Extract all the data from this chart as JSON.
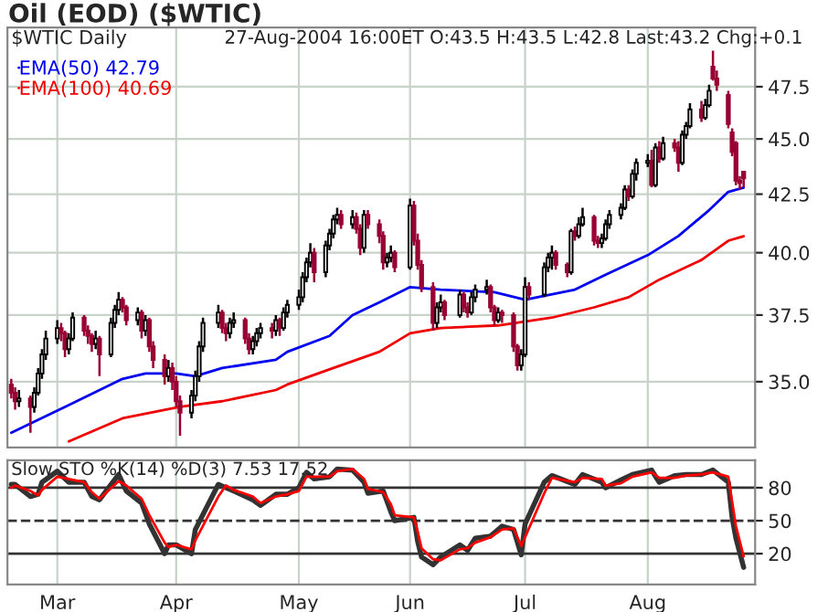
{
  "chart_data": [
    {
      "type": "candlestick",
      "title": "Oil (EOD) ($WTIC)",
      "annotations": [
        "$WTIC Daily",
        "27-Aug-2004 16:00ET O:43.5 H:43.5 L:42.8 Last:43.2 Chg:+0.1"
      ],
      "x": [
        "2004-02-18",
        "2004-02-19",
        "2004-02-20",
        "2004-02-23",
        "2004-02-24",
        "2004-02-25",
        "2004-02-26",
        "2004-02-27",
        "2004-03-01",
        "2004-03-02",
        "2004-03-03",
        "2004-03-04",
        "2004-03-05",
        "2004-03-08",
        "2004-03-09",
        "2004-03-10",
        "2004-03-11",
        "2004-03-12",
        "2004-03-15",
        "2004-03-16",
        "2004-03-17",
        "2004-03-18",
        "2004-03-19",
        "2004-03-22",
        "2004-03-23",
        "2004-03-24",
        "2004-03-25",
        "2004-03-26",
        "2004-03-29",
        "2004-03-30",
        "2004-03-31",
        "2004-04-01",
        "2004-04-02",
        "2004-04-05",
        "2004-04-06",
        "2004-04-07",
        "2004-04-08",
        "2004-04-12",
        "2004-04-13",
        "2004-04-14",
        "2004-04-15",
        "2004-04-16",
        "2004-04-19",
        "2004-04-20",
        "2004-04-21",
        "2004-04-22",
        "2004-04-23",
        "2004-04-26",
        "2004-04-27",
        "2004-04-28",
        "2004-04-29",
        "2004-04-30",
        "2004-05-03",
        "2004-05-04",
        "2004-05-05",
        "2004-05-06",
        "2004-05-07",
        "2004-05-10",
        "2004-05-11",
        "2004-05-12",
        "2004-05-13",
        "2004-05-14",
        "2004-05-17",
        "2004-05-18",
        "2004-05-19",
        "2004-05-20",
        "2004-05-21",
        "2004-05-24",
        "2004-05-25",
        "2004-05-26",
        "2004-05-27",
        "2004-05-28",
        "2004-06-01",
        "2004-06-02",
        "2004-06-03",
        "2004-06-04",
        "2004-06-07",
        "2004-06-08",
        "2004-06-09",
        "2004-06-10",
        "2004-06-14",
        "2004-06-15",
        "2004-06-16",
        "2004-06-17",
        "2004-06-18",
        "2004-06-21",
        "2004-06-22",
        "2004-06-23",
        "2004-06-24",
        "2004-06-25",
        "2004-06-28",
        "2004-06-29",
        "2004-06-30",
        "2004-07-01",
        "2004-07-02",
        "2004-07-06",
        "2004-07-07",
        "2004-07-08",
        "2004-07-09",
        "2004-07-12",
        "2004-07-13",
        "2004-07-14",
        "2004-07-15",
        "2004-07-16",
        "2004-07-19",
        "2004-07-20",
        "2004-07-21",
        "2004-07-22",
        "2004-07-23",
        "2004-07-26",
        "2004-07-27",
        "2004-07-28",
        "2004-07-29",
        "2004-07-30",
        "2004-08-02",
        "2004-08-03",
        "2004-08-04",
        "2004-08-05",
        "2004-08-06",
        "2004-08-09",
        "2004-08-10",
        "2004-08-11",
        "2004-08-12",
        "2004-08-13",
        "2004-08-16",
        "2004-08-17",
        "2004-08-18",
        "2004-08-19",
        "2004-08-20",
        "2004-08-23",
        "2004-08-24",
        "2004-08-25",
        "2004-08-26",
        "2004-08-27"
      ],
      "ohlc": [
        [
          34.9,
          35.1,
          34.4,
          34.6
        ],
        [
          34.6,
          34.8,
          34.0,
          34.3
        ],
        [
          34.3,
          34.7,
          34.1,
          34.4
        ],
        [
          34.4,
          34.5,
          33.2,
          34.1
        ],
        [
          34.1,
          34.8,
          33.9,
          34.6
        ],
        [
          34.6,
          35.5,
          34.5,
          35.3
        ],
        [
          35.3,
          36.2,
          35.1,
          36.0
        ],
        [
          36.0,
          36.9,
          35.8,
          36.6
        ],
        [
          36.6,
          37.3,
          36.4,
          37.0
        ],
        [
          37.0,
          37.2,
          36.5,
          36.8
        ],
        [
          36.8,
          36.9,
          35.9,
          36.2
        ],
        [
          36.2,
          36.8,
          36.0,
          36.6
        ],
        [
          36.6,
          37.6,
          36.5,
          37.4
        ],
        [
          37.4,
          37.5,
          36.7,
          36.9
        ],
        [
          36.9,
          37.1,
          36.4,
          36.7
        ],
        [
          36.7,
          36.8,
          36.1,
          36.4
        ],
        [
          36.4,
          36.9,
          36.2,
          36.6
        ],
        [
          36.6,
          36.7,
          35.2,
          36.0
        ],
        [
          36.0,
          37.4,
          35.9,
          37.2
        ],
        [
          37.2,
          37.9,
          37.0,
          37.7
        ],
        [
          37.7,
          38.4,
          37.5,
          38.1
        ],
        [
          38.1,
          38.2,
          37.6,
          37.8
        ],
        [
          37.8,
          37.9,
          37.1,
          37.3
        ],
        [
          37.3,
          37.8,
          37.1,
          37.6
        ],
        [
          37.6,
          37.7,
          36.6,
          36.9
        ],
        [
          36.9,
          37.5,
          36.7,
          37.3
        ],
        [
          37.3,
          37.4,
          36.1,
          36.3
        ],
        [
          36.3,
          36.5,
          35.5,
          35.8
        ],
        [
          35.8,
          36.0,
          34.9,
          35.2
        ],
        [
          35.2,
          35.8,
          35.0,
          35.5
        ],
        [
          35.5,
          35.7,
          34.7,
          35.0
        ],
        [
          35.0,
          35.2,
          34.1,
          34.3
        ],
        [
          34.3,
          34.5,
          33.1,
          33.9
        ],
        [
          33.9,
          34.7,
          33.7,
          34.5
        ],
        [
          34.5,
          35.4,
          34.3,
          35.2
        ],
        [
          35.2,
          36.5,
          35.0,
          36.3
        ],
        [
          36.3,
          37.4,
          36.1,
          37.2
        ],
        [
          37.2,
          37.9,
          37.0,
          37.6
        ],
        [
          37.6,
          37.7,
          36.8,
          37.0
        ],
        [
          37.0,
          37.2,
          36.5,
          36.8
        ],
        [
          36.8,
          37.4,
          36.6,
          37.2
        ],
        [
          37.2,
          37.6,
          37.0,
          37.3
        ],
        [
          37.3,
          37.4,
          36.4,
          36.6
        ],
        [
          36.6,
          36.8,
          36.0,
          36.2
        ],
        [
          36.2,
          36.7,
          36.0,
          36.5
        ],
        [
          36.5,
          37.0,
          36.3,
          36.8
        ],
        [
          36.8,
          37.2,
          36.6,
          37.0
        ],
        [
          37.0,
          37.2,
          36.6,
          36.9
        ],
        [
          36.9,
          37.5,
          36.7,
          37.3
        ],
        [
          37.3,
          37.4,
          36.7,
          37.0
        ],
        [
          37.0,
          37.8,
          36.9,
          37.6
        ],
        [
          37.6,
          38.1,
          37.4,
          37.9
        ],
        [
          37.9,
          38.5,
          37.7,
          38.2
        ],
        [
          38.2,
          39.2,
          38.0,
          39.0
        ],
        [
          39.0,
          39.8,
          38.8,
          39.6
        ],
        [
          39.6,
          40.4,
          39.4,
          40.0
        ],
        [
          40.0,
          40.2,
          38.8,
          39.2
        ],
        [
          39.2,
          40.5,
          39.0,
          40.3
        ],
        [
          40.3,
          41.0,
          40.1,
          40.8
        ],
        [
          40.8,
          41.6,
          40.6,
          41.4
        ],
        [
          41.4,
          41.9,
          41.2,
          41.6
        ],
        [
          41.6,
          41.8,
          41.0,
          41.2
        ],
        [
          41.2,
          41.8,
          41.0,
          41.5
        ],
        [
          41.5,
          41.7,
          40.8,
          41.0
        ],
        [
          41.0,
          41.2,
          39.9,
          40.2
        ],
        [
          40.2,
          41.8,
          40.0,
          41.6
        ],
        [
          41.6,
          41.8,
          41.0,
          41.2
        ],
        [
          41.2,
          41.4,
          40.4,
          40.7
        ],
        [
          40.7,
          40.9,
          39.3,
          39.6
        ],
        [
          39.6,
          40.0,
          39.4,
          39.8
        ],
        [
          39.8,
          40.3,
          39.6,
          40.0
        ],
        [
          40.0,
          40.1,
          39.2,
          39.4
        ],
        [
          39.4,
          42.3,
          39.3,
          42.0
        ],
        [
          42.0,
          42.2,
          40.3,
          40.5
        ],
        [
          40.5,
          40.8,
          39.3,
          39.5
        ],
        [
          39.5,
          39.7,
          38.4,
          38.6
        ],
        [
          38.6,
          38.8,
          36.9,
          37.2
        ],
        [
          37.2,
          38.0,
          37.0,
          37.8
        ],
        [
          37.8,
          38.3,
          37.6,
          38.0
        ],
        [
          38.0,
          38.1,
          37.3,
          37.5
        ],
        [
          37.5,
          38.5,
          37.4,
          38.3
        ],
        [
          38.3,
          38.4,
          37.6,
          37.8
        ],
        [
          37.8,
          38.0,
          37.4,
          37.6
        ],
        [
          37.6,
          38.4,
          37.5,
          38.2
        ],
        [
          38.2,
          38.7,
          38.0,
          38.5
        ],
        [
          38.5,
          38.9,
          38.3,
          38.6
        ],
        [
          38.6,
          38.7,
          37.6,
          37.8
        ],
        [
          37.8,
          37.9,
          37.1,
          37.3
        ],
        [
          37.3,
          37.8,
          37.2,
          37.6
        ],
        [
          37.6,
          37.7,
          37.2,
          37.5
        ],
        [
          37.5,
          37.6,
          36.1,
          36.3
        ],
        [
          36.3,
          36.4,
          35.4,
          35.6
        ],
        [
          35.6,
          36.2,
          35.4,
          36.0
        ],
        [
          36.0,
          39.0,
          35.9,
          38.6
        ],
        [
          38.6,
          38.8,
          38.1,
          38.3
        ],
        [
          38.3,
          39.6,
          38.2,
          39.4
        ],
        [
          39.4,
          40.0,
          39.2,
          39.8
        ],
        [
          39.8,
          40.3,
          39.3,
          40.0
        ],
        [
          40.0,
          40.1,
          39.3,
          39.5
        ],
        [
          39.5,
          39.6,
          39.0,
          39.2
        ],
        [
          39.2,
          41.0,
          39.1,
          40.9
        ],
        [
          40.9,
          41.1,
          40.5,
          40.7
        ],
        [
          40.7,
          41.5,
          40.6,
          41.2
        ],
        [
          41.2,
          41.9,
          41.1,
          41.5
        ],
        [
          41.5,
          41.6,
          40.3,
          40.5
        ],
        [
          40.5,
          40.7,
          40.2,
          40.4
        ],
        [
          40.4,
          40.8,
          40.2,
          40.6
        ],
        [
          40.6,
          41.4,
          40.5,
          41.2
        ],
        [
          41.2,
          41.8,
          41.0,
          41.6
        ],
        [
          41.6,
          42.1,
          41.4,
          41.9
        ],
        [
          41.9,
          42.9,
          41.8,
          42.7
        ],
        [
          42.7,
          42.9,
          42.2,
          42.4
        ],
        [
          42.4,
          43.6,
          42.3,
          43.4
        ],
        [
          43.4,
          44.1,
          43.1,
          43.9
        ],
        [
          43.9,
          44.3,
          43.7,
          44.0
        ],
        [
          44.0,
          44.5,
          42.8,
          42.9
        ],
        [
          42.9,
          44.8,
          42.8,
          44.6
        ],
        [
          44.6,
          44.9,
          43.9,
          44.1
        ],
        [
          44.1,
          45.1,
          44.0,
          44.8
        ],
        [
          44.8,
          45.0,
          44.4,
          44.6
        ],
        [
          44.6,
          44.9,
          43.5,
          43.9
        ],
        [
          43.9,
          45.4,
          43.8,
          45.2
        ],
        [
          45.2,
          45.8,
          45.0,
          45.6
        ],
        [
          45.6,
          46.7,
          45.5,
          46.4
        ],
        [
          46.4,
          46.8,
          45.8,
          46.0
        ],
        [
          46.0,
          46.9,
          45.9,
          46.6
        ],
        [
          46.6,
          47.6,
          46.5,
          47.3
        ],
        [
          48.5,
          49.3,
          47.8,
          47.9
        ],
        [
          47.9,
          48.3,
          47.3,
          47.6
        ],
        [
          47.1,
          47.3,
          45.5,
          45.7
        ],
        [
          45.3,
          45.5,
          44.2,
          44.4
        ],
        [
          44.8,
          44.9,
          42.9,
          43.1
        ],
        [
          43.1,
          43.3,
          42.7,
          43.0
        ],
        [
          43.5,
          43.5,
          42.8,
          43.2
        ]
      ],
      "series": [
        {
          "name": "EMA(50) 42.79",
          "type": "line",
          "color": "#0000ee",
          "x": [
            "2004-02-18",
            "2004-03-03",
            "2004-03-18",
            "2004-03-24",
            "2004-04-01",
            "2004-04-06",
            "2004-04-13",
            "2004-04-27",
            "2004-04-30",
            "2004-05-11",
            "2004-05-17",
            "2004-05-24",
            "2004-06-01",
            "2004-06-09",
            "2004-06-23",
            "2004-07-01",
            "2004-07-14",
            "2004-07-22",
            "2004-08-02",
            "2004-08-10",
            "2004-08-18",
            "2004-08-23",
            "2004-08-27"
          ],
          "values": [
            33.2,
            34.1,
            35.1,
            35.3,
            35.3,
            35.2,
            35.5,
            35.8,
            36.1,
            36.7,
            37.5,
            38.0,
            38.6,
            38.5,
            38.4,
            38.1,
            38.5,
            39.1,
            39.9,
            40.7,
            41.8,
            42.6,
            42.79
          ]
        },
        {
          "name": "EMA(100) 40.69",
          "type": "line",
          "color": "#ee0000",
          "x": [
            "2004-03-04",
            "2004-03-18",
            "2004-04-02",
            "2004-04-13",
            "2004-04-27",
            "2004-04-30",
            "2004-05-12",
            "2004-05-24",
            "2004-06-01",
            "2004-06-09",
            "2004-06-24",
            "2004-07-08",
            "2004-07-19",
            "2004-07-28",
            "2004-08-05",
            "2004-08-16",
            "2004-08-23",
            "2004-08-27"
          ],
          "values": [
            32.9,
            33.7,
            34.1,
            34.3,
            34.7,
            34.9,
            35.5,
            36.1,
            36.8,
            37.0,
            37.1,
            37.4,
            37.8,
            38.2,
            38.9,
            39.7,
            40.5,
            40.69
          ]
        }
      ],
      "log": true,
      "ylim": [
        32.7,
        50.5
      ],
      "yticks": [
        {
          "value": 35,
          "label": "35.0"
        },
        {
          "value": 37.5,
          "label": "37.5"
        },
        {
          "value": 40,
          "label": "40.0"
        },
        {
          "value": 42.5,
          "label": "42.5"
        },
        {
          "value": 45,
          "label": "45.0"
        },
        {
          "value": 47.5,
          "label": "47.5"
        }
      ],
      "xlim": [
        "2004-02-17",
        "2004-08-30"
      ],
      "xticks": [
        {
          "value": "2004-03-01",
          "label": null
        },
        {
          "value": "2004-04-01",
          "label": null
        },
        {
          "value": "2004-05-03",
          "label": null
        },
        {
          "value": "2004-06-01",
          "label": null
        },
        {
          "value": "2004-07-01",
          "label": null
        },
        {
          "value": "2004-08-02",
          "label": null
        }
      ],
      "tick_labels": "y",
      "grid": true,
      "legend": "top left"
    },
    {
      "type": "line",
      "title": "Slow STO %K(14) %D(3) 7.53 17.52",
      "series": [
        {
          "color": "#333333",
          "x": [
            "2004-02-18",
            "2004-02-19",
            "2004-02-23",
            "2004-02-25",
            "2004-02-26",
            "2004-03-01",
            "2004-03-04",
            "2004-03-08",
            "2004-03-10",
            "2004-03-12",
            "2004-03-17",
            "2004-03-19",
            "2004-03-23",
            "2004-03-25",
            "2004-03-29",
            "2004-03-30",
            "2004-04-01",
            "2004-04-05",
            "2004-04-06",
            "2004-04-12",
            "2004-04-14",
            "2004-04-16",
            "2004-04-21",
            "2004-04-23",
            "2004-04-27",
            "2004-04-30",
            "2004-05-03",
            "2004-05-05",
            "2004-05-07",
            "2004-05-11",
            "2004-05-13",
            "2004-05-17",
            "2004-05-20",
            "2004-05-21",
            "2004-05-25",
            "2004-05-27",
            "2004-05-28",
            "2004-06-02",
            "2004-06-03",
            "2004-06-04",
            "2004-06-07",
            "2004-06-09",
            "2004-06-14",
            "2004-06-16",
            "2004-06-18",
            "2004-06-22",
            "2004-06-25",
            "2004-06-28",
            "2004-06-30",
            "2004-07-01",
            "2004-07-06",
            "2004-07-08",
            "2004-07-14",
            "2004-07-16",
            "2004-07-21",
            "2004-07-22",
            "2004-07-26",
            "2004-07-29",
            "2004-08-03",
            "2004-08-05",
            "2004-08-09",
            "2004-08-12",
            "2004-08-16",
            "2004-08-19",
            "2004-08-23",
            "2004-08-24",
            "2004-08-25",
            "2004-08-27"
          ],
          "values": [
            83,
            83,
            72,
            74,
            85,
            95,
            85,
            85,
            72,
            69,
            92,
            77,
            66,
            47,
            20,
            28,
            28,
            20,
            42,
            83,
            80,
            77,
            69,
            64,
            74,
            74,
            80,
            94,
            88,
            90,
            97,
            96,
            85,
            75,
            77,
            58,
            50,
            53,
            31,
            17,
            10,
            17,
            28,
            23,
            34,
            36,
            45,
            42,
            19,
            47,
            85,
            91,
            83,
            92,
            85,
            80,
            87,
            92,
            96,
            85,
            91,
            92,
            92,
            96,
            85,
            53,
            34,
            7.53
          ]
        },
        {
          "color": "#ff0000",
          "x": [
            "2004-02-18",
            "2004-02-19",
            "2004-02-23",
            "2004-02-25",
            "2004-02-26",
            "2004-03-01",
            "2004-03-04",
            "2004-03-08",
            "2004-03-10",
            "2004-03-12",
            "2004-03-17",
            "2004-03-19",
            "2004-03-23",
            "2004-03-25",
            "2004-03-29",
            "2004-03-30",
            "2004-04-01",
            "2004-04-05",
            "2004-04-06",
            "2004-04-12",
            "2004-04-14",
            "2004-04-16",
            "2004-04-21",
            "2004-04-23",
            "2004-04-27",
            "2004-04-30",
            "2004-05-03",
            "2004-05-05",
            "2004-05-07",
            "2004-05-11",
            "2004-05-13",
            "2004-05-17",
            "2004-05-20",
            "2004-05-21",
            "2004-05-25",
            "2004-05-27",
            "2004-05-28",
            "2004-06-02",
            "2004-06-03",
            "2004-06-04",
            "2004-06-07",
            "2004-06-09",
            "2004-06-14",
            "2004-06-16",
            "2004-06-18",
            "2004-06-22",
            "2004-06-25",
            "2004-06-28",
            "2004-06-30",
            "2004-07-01",
            "2004-07-06",
            "2004-07-08",
            "2004-07-14",
            "2004-07-16",
            "2004-07-21",
            "2004-07-22",
            "2004-07-26",
            "2004-07-29",
            "2004-08-03",
            "2004-08-05",
            "2004-08-09",
            "2004-08-12",
            "2004-08-16",
            "2004-08-19",
            "2004-08-23",
            "2004-08-24",
            "2004-08-25",
            "2004-08-27"
          ],
          "values": [
            80,
            82,
            77,
            73,
            78,
            90,
            88,
            85,
            76,
            70,
            86,
            82,
            70,
            55,
            30,
            26,
            28,
            24,
            32,
            72,
            82,
            78,
            72,
            66,
            72,
            74,
            77,
            90,
            90,
            90,
            95,
            97,
            88,
            79,
            76,
            65,
            55,
            53,
            40,
            25,
            15,
            14,
            24,
            25,
            30,
            35,
            42,
            43,
            27,
            35,
            75,
            89,
            85,
            89,
            88,
            82,
            84,
            90,
            94,
            89,
            89,
            91,
            92,
            94,
            90,
            67,
            45,
            17.52
          ]
        }
      ],
      "ylim": [
        -8,
        105
      ],
      "yticks": [
        20,
        50,
        80
      ],
      "ref_lines": [
        {
          "axis": "y",
          "value": 80,
          "color": "#333333",
          "line_style": "solid"
        },
        {
          "axis": "y",
          "value": 50,
          "color": "#333333",
          "line_style": "dashed"
        },
        {
          "axis": "y",
          "value": 20,
          "color": "#333333",
          "line_style": "solid"
        }
      ],
      "xlim": [
        "2004-02-17",
        "2004-08-30"
      ],
      "xticks": [
        {
          "value": "2004-03-01",
          "label": "Mar"
        },
        {
          "value": "2004-04-01",
          "label": "Apr"
        },
        {
          "value": "2004-05-03",
          "label": "May"
        },
        {
          "value": "2004-06-01",
          "label": "Jun"
        },
        {
          "value": "2004-07-01",
          "label": "Jul"
        },
        {
          "value": "2004-08-02",
          "label": "Aug"
        }
      ],
      "grid": "x"
    }
  ]
}
